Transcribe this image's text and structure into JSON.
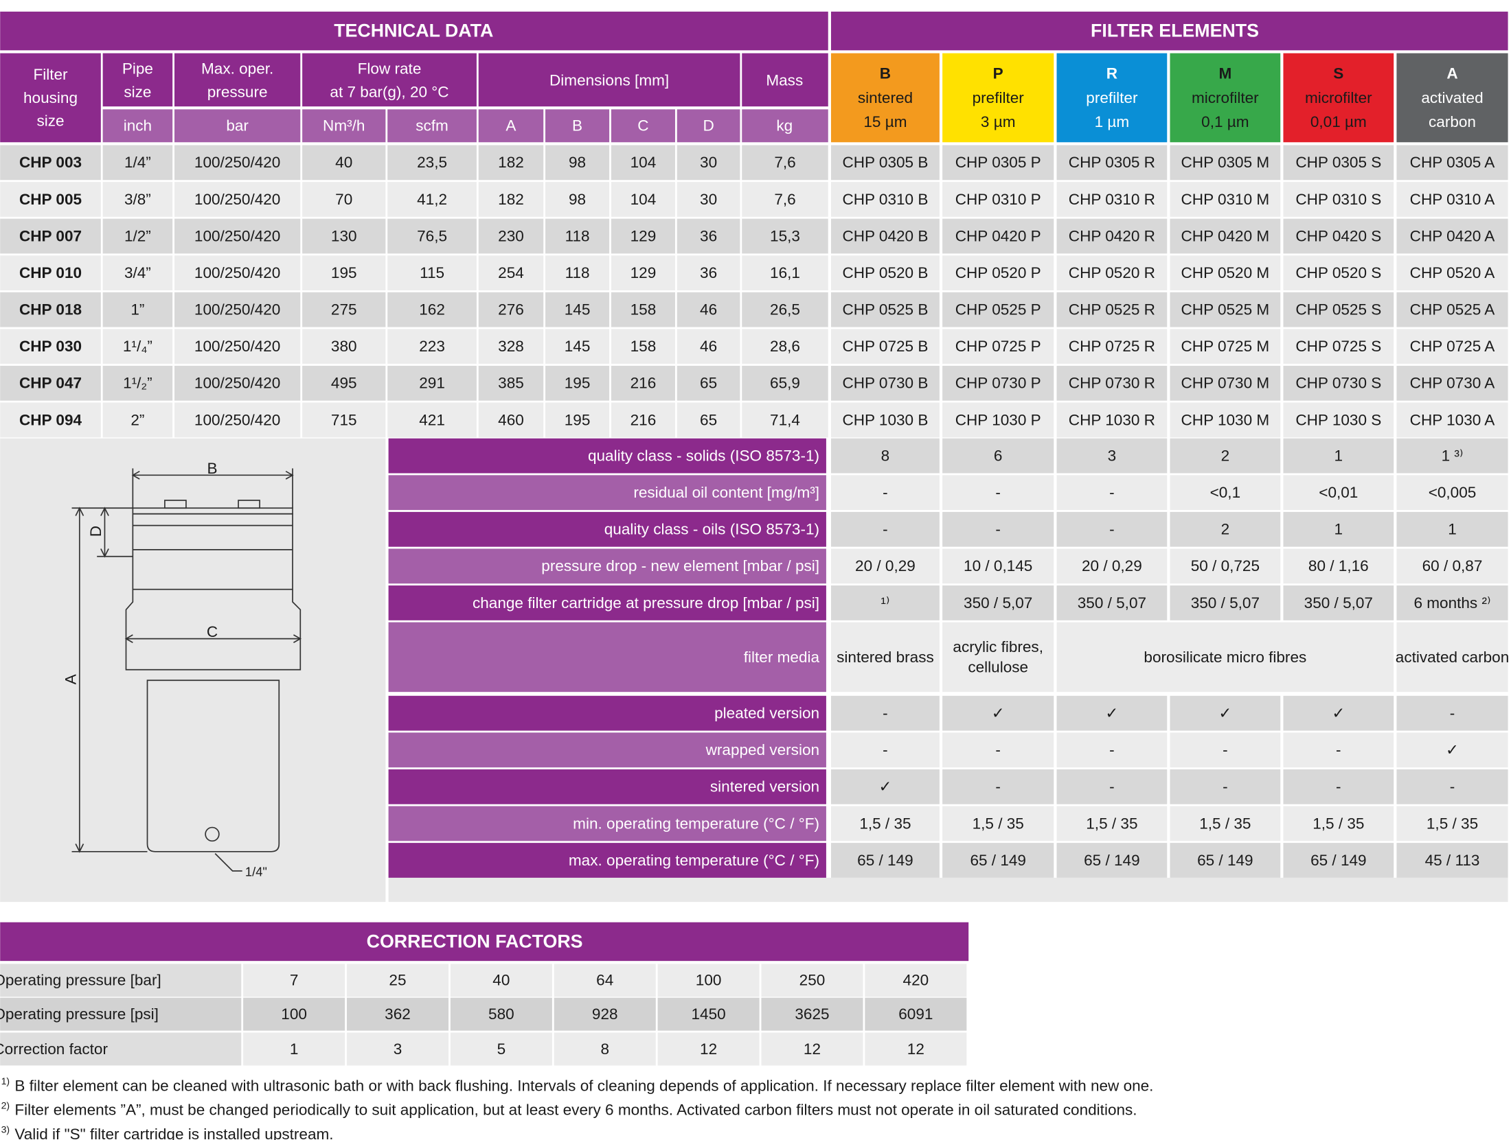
{
  "technical_data": {
    "title": "TECHNICAL DATA",
    "filter_housing": [
      "Filter",
      "housing",
      "size"
    ],
    "pipe_size": {
      "label": [
        "Pipe",
        "size"
      ],
      "unit": "inch"
    },
    "max_pressure": {
      "label": [
        "Max. oper.",
        "pressure"
      ],
      "unit": "bar"
    },
    "flow_rate": {
      "label": [
        "Flow rate",
        "at 7 bar(g), 20 °C"
      ],
      "units": [
        "Nm³/h",
        "scfm"
      ]
    },
    "dimensions": {
      "label": "Dimensions [mm]",
      "units": [
        "A",
        "B",
        "C",
        "D"
      ]
    },
    "mass": {
      "label": "Mass",
      "unit": "kg"
    }
  },
  "filter_elements": {
    "title": "FILTER ELEMENTS",
    "elements": [
      {
        "code": "B",
        "name": "sintered",
        "rating": "15 µm",
        "color": "#f39a1e",
        "text_color": "#1a1a1a"
      },
      {
        "code": "P",
        "name": "prefilter",
        "rating": "3 µm",
        "color": "#ffe100",
        "text_color": "#1a1a1a"
      },
      {
        "code": "R",
        "name": "prefilter",
        "rating": "1 µm",
        "color": "#0a8fd6",
        "text_color": "#ffffff"
      },
      {
        "code": "M",
        "name": "microfilter",
        "rating": "0,1 µm",
        "color": "#37a84a",
        "text_color": "#1a1a1a"
      },
      {
        "code": "S",
        "name": "microfilter",
        "rating": "0,01 µm",
        "color": "#e3202a",
        "text_color": "#1a1a1a"
      },
      {
        "code": "A",
        "name": "activated",
        "rating": "carbon",
        "color": "#606264",
        "text_color": "#ffffff"
      }
    ]
  },
  "rows": [
    [
      "CHP 003",
      "1/4”",
      "100/250/420",
      "40",
      "23,5",
      "182",
      "98",
      "104",
      "30",
      "7,6",
      "CHP 0305 B",
      "CHP 0305 P",
      "CHP 0305 R",
      "CHP 0305 M",
      "CHP 0305 S",
      "CHP 0305 A"
    ],
    [
      "CHP 005",
      "3/8”",
      "100/250/420",
      "70",
      "41,2",
      "182",
      "98",
      "104",
      "30",
      "7,6",
      "CHP 0310 B",
      "CHP 0310 P",
      "CHP 0310 R",
      "CHP 0310 M",
      "CHP 0310 S",
      "CHP 0310 A"
    ],
    [
      "CHP 007",
      "1/2”",
      "100/250/420",
      "130",
      "76,5",
      "230",
      "118",
      "129",
      "36",
      "15,3",
      "CHP 0420 B",
      "CHP 0420 P",
      "CHP 0420 R",
      "CHP 0420 M",
      "CHP 0420 S",
      "CHP 0420 A"
    ],
    [
      "CHP 010",
      "3/4”",
      "100/250/420",
      "195",
      "115",
      "254",
      "118",
      "129",
      "36",
      "16,1",
      "CHP 0520 B",
      "CHP 0520 P",
      "CHP 0520 R",
      "CHP 0520 M",
      "CHP 0520 S",
      "CHP 0520 A"
    ],
    [
      "CHP 018",
      "1”",
      "100/250/420",
      "275",
      "162",
      "276",
      "145",
      "158",
      "46",
      "26,5",
      "CHP 0525 B",
      "CHP 0525 P",
      "CHP 0525 R",
      "CHP 0525 M",
      "CHP 0525 S",
      "CHP 0525 A"
    ],
    [
      "CHP 030",
      "1¹/₄”",
      "100/250/420",
      "380",
      "223",
      "328",
      "145",
      "158",
      "46",
      "28,6",
      "CHP 0725 B",
      "CHP 0725 P",
      "CHP 0725 R",
      "CHP 0725 M",
      "CHP 0725 S",
      "CHP 0725 A"
    ],
    [
      "CHP 047",
      "1¹/₂”",
      "100/250/420",
      "495",
      "291",
      "385",
      "195",
      "216",
      "65",
      "65,9",
      "CHP 0730 B",
      "CHP 0730 P",
      "CHP 0730 R",
      "CHP 0730 M",
      "CHP 0730 S",
      "CHP 0730 A"
    ],
    [
      "CHP 094",
      "2”",
      "100/250/420",
      "715",
      "421",
      "460",
      "195",
      "216",
      "65",
      "71,4",
      "CHP 1030 B",
      "CHP 1030 P",
      "CHP 1030 R",
      "CHP 1030 M",
      "CHP 1030 S",
      "CHP 1030 A"
    ]
  ],
  "properties": [
    {
      "label": "quality class - solids (ISO 8573-1)",
      "values": [
        "8",
        "6",
        "3",
        "2",
        "1",
        "1 ³⁾"
      ]
    },
    {
      "label": "residual oil content [mg/m³]",
      "values": [
        "-",
        "-",
        "-",
        "<0,1",
        "<0,01",
        "<0,005"
      ]
    },
    {
      "label": "quality class - oils (ISO 8573-1)",
      "values": [
        "-",
        "-",
        "-",
        "2",
        "1",
        "1"
      ]
    },
    {
      "label": "pressure drop - new element [mbar / psi]",
      "values": [
        "20 / 0,29",
        "10 / 0,145",
        "20 / 0,29",
        "50 / 0,725",
        "80 / 1,16",
        "60 / 0,87"
      ]
    },
    {
      "label": "change filter cartridge at pressure drop [mbar / psi]",
      "values": [
        "¹⁾",
        "350 / 5,07",
        "350 / 5,07",
        "350 / 5,07",
        "350 / 5,07",
        "6 months ²⁾"
      ]
    },
    {
      "label": "filter media",
      "cells": [
        {
          "text": [
            "sintered brass"
          ],
          "span": 1
        },
        {
          "text": [
            "acrylic fibres,",
            "cellulose"
          ],
          "span": 1
        },
        {
          "text": [
            "borosilicate micro fibres"
          ],
          "span": 3
        },
        {
          "text": [
            "activated carbon"
          ],
          "span": 1
        }
      ]
    },
    {
      "label": "pleated version",
      "values": [
        "-",
        "✓",
        "✓",
        "✓",
        "✓",
        "-"
      ]
    },
    {
      "label": "wrapped version",
      "values": [
        "-",
        "-",
        "-",
        "-",
        "-",
        "✓"
      ]
    },
    {
      "label": "sintered version",
      "values": [
        "✓",
        "-",
        "-",
        "-",
        "-",
        "-"
      ]
    },
    {
      "label": "min. operating temperature  (°C / °F)",
      "values": [
        "1,5 / 35",
        "1,5 / 35",
        "1,5 / 35",
        "1,5 / 35",
        "1,5 / 35",
        "1,5 / 35"
      ]
    },
    {
      "label": "max. operating temperature  (°C / °F)",
      "values": [
        "65 / 149",
        "65 / 149",
        "65 / 149",
        "65 / 149",
        "65 / 149",
        "45 / 113"
      ]
    }
  ],
  "diagram": {
    "labels": [
      "B",
      "D",
      "C",
      "A",
      "1/4\""
    ]
  },
  "correction_factors": {
    "title": "CORRECTION FACTORS",
    "rows": [
      {
        "label": "Operating pressure [bar]",
        "values": [
          "7",
          "25",
          "40",
          "64",
          "100",
          "250",
          "420"
        ]
      },
      {
        "label": "Operating pressure [psi]",
        "values": [
          "100",
          "362",
          "580",
          "928",
          "1450",
          "3625",
          "6091"
        ]
      },
      {
        "label": "Correction factor",
        "values": [
          "1",
          "3",
          "5",
          "8",
          "12",
          "12",
          "12"
        ]
      }
    ]
  },
  "footnotes": [
    {
      "mark": "1)",
      "text": "B filter element can be cleaned with ultrasonic bath or with back flushing. Intervals of cleaning depends of application. If necessary replace filter element with new one."
    },
    {
      "mark": "2)",
      "text": "Filter elements ”A”, must be changed periodically to suit application, but at least every 6 months. Activated carbon filters must not operate in oil saturated conditions."
    },
    {
      "mark": "3)",
      "text": "Valid if \"S\" filter cartridge is installed upstream."
    }
  ]
}
